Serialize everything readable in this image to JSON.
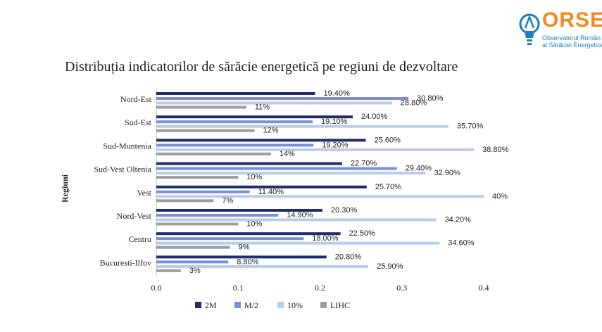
{
  "logo": {
    "name": "ORSE",
    "subtitle_line1": "Observatorul Român",
    "subtitle_line2": "al Sărăciei Energetice"
  },
  "chart_data": {
    "type": "bar",
    "orientation": "horizontal",
    "title": "Distribuția indicatorilor de sărăcie energetică pe regiuni de dezvoltare",
    "ylabel": "Regiuni",
    "xlabel": "",
    "xlim": [
      0,
      0.4
    ],
    "xticks": [
      "0.0",
      "0.1",
      "0.2",
      "0.3",
      "0.4"
    ],
    "categories": [
      "Nord-Est",
      "Sud-Est",
      "Sud-Muntenia",
      "Sud-Vest Oltenia",
      "Vest",
      "Nord-Vest",
      "Centru",
      "Bucuresti-Ilfov"
    ],
    "series": [
      {
        "name": "2M",
        "color": "#1f2d6b",
        "values": [
          0.194,
          0.24,
          0.256,
          0.227,
          0.257,
          0.203,
          0.225,
          0.208
        ],
        "labels": [
          "19.40%",
          "24.00%",
          "25.60%",
          "22.70%",
          "25.70%",
          "20.30%",
          "22.50%",
          "20.80%"
        ]
      },
      {
        "name": "M/2",
        "color": "#7b8fd6",
        "values": [
          0.308,
          0.191,
          0.192,
          0.294,
          0.114,
          0.149,
          0.18,
          0.088
        ],
        "labels": [
          "30.80%",
          "19.10%",
          "19.20%",
          "29.40%",
          "11.40%",
          "14.90%",
          "18.00%",
          "8.80%"
        ]
      },
      {
        "name": "10%",
        "color": "#b9cdea",
        "values": [
          0.288,
          0.357,
          0.388,
          0.329,
          0.4,
          0.342,
          0.346,
          0.259
        ],
        "labels": [
          "28.80%",
          "35.70%",
          "38.80%",
          "32.90%",
          "40%",
          "34.20%",
          "34.60%",
          "25.90%"
        ]
      },
      {
        "name": "LIHC",
        "color": "#9e9e9e",
        "values": [
          0.11,
          0.12,
          0.14,
          0.1,
          0.07,
          0.1,
          0.09,
          0.03
        ],
        "labels": [
          "11%",
          "12%",
          "14%",
          "10%",
          "7%",
          "10%",
          "9%",
          "3%"
        ]
      }
    ],
    "legend": "bottom",
    "grid": false
  }
}
